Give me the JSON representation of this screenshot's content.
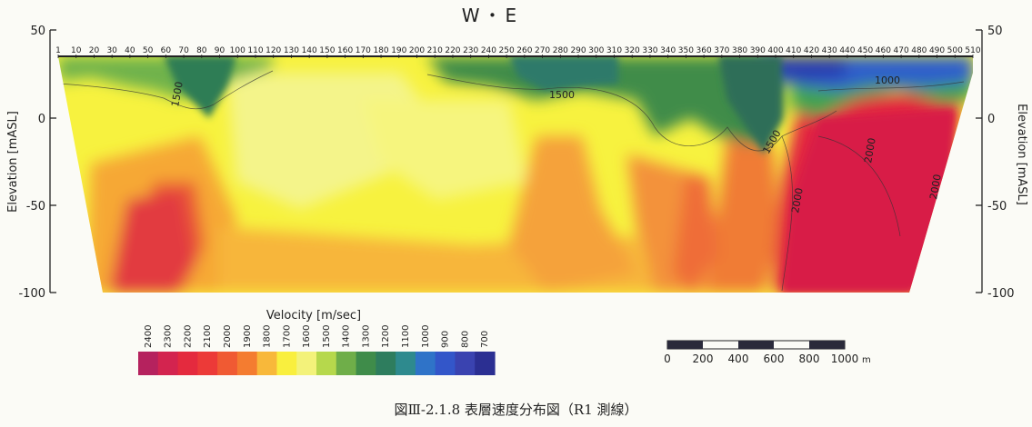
{
  "title": "W・E",
  "y_axis": {
    "label": "Elevation [mASL]",
    "ticks": [
      "50",
      "0",
      "-50",
      "-100"
    ],
    "values": [
      50,
      0,
      -50,
      -100
    ]
  },
  "station_labels": [
    "1",
    "10",
    "20",
    "30",
    "40",
    "50",
    "60",
    "70",
    "80",
    "90",
    "100",
    "110",
    "120",
    "130",
    "140",
    "150",
    "160",
    "170",
    "180",
    "190",
    "200",
    "210",
    "220",
    "230",
    "240",
    "250",
    "260",
    "270",
    "280",
    "290",
    "300",
    "310",
    "320",
    "330",
    "340",
    "350",
    "360",
    "370",
    "380",
    "390",
    "400",
    "410",
    "420",
    "430",
    "440",
    "450",
    "460",
    "470",
    "480",
    "490",
    "500",
    "510"
  ],
  "contour_labels": [
    {
      "id": "c1",
      "text": "1500"
    },
    {
      "id": "c2",
      "text": "1500"
    },
    {
      "id": "c3",
      "text": "1500"
    },
    {
      "id": "c4",
      "text": "1000"
    },
    {
      "id": "c5",
      "text": "2000"
    },
    {
      "id": "c6",
      "text": "2000"
    },
    {
      "id": "c7",
      "text": "2000"
    }
  ],
  "legend": {
    "title": "Velocity [m/sec]",
    "labels": [
      "2400",
      "2300",
      "2200",
      "2100",
      "2000",
      "1900",
      "1800",
      "1700",
      "1600",
      "1500",
      "1400",
      "1300",
      "1200",
      "1100",
      "1000",
      "900",
      "800",
      "700"
    ],
    "colors": [
      "#b5225e",
      "#d3244f",
      "#e42a3e",
      "#ec3a38",
      "#f05a33",
      "#f47c30",
      "#f8b83a",
      "#f9ef3e",
      "#f3f27a",
      "#b6d84c",
      "#6fae49",
      "#3f8c4a",
      "#2e7d5e",
      "#2e8a8e",
      "#2f73c8",
      "#3356c9",
      "#3a43b0",
      "#2b2f92"
    ]
  },
  "scale_bar": {
    "labels": [
      "0",
      "200",
      "400",
      "600",
      "800",
      "1000"
    ],
    "unit": "m"
  },
  "caption": "図Ⅲ-2.1.8 表層速度分布図（R1 測線）"
}
